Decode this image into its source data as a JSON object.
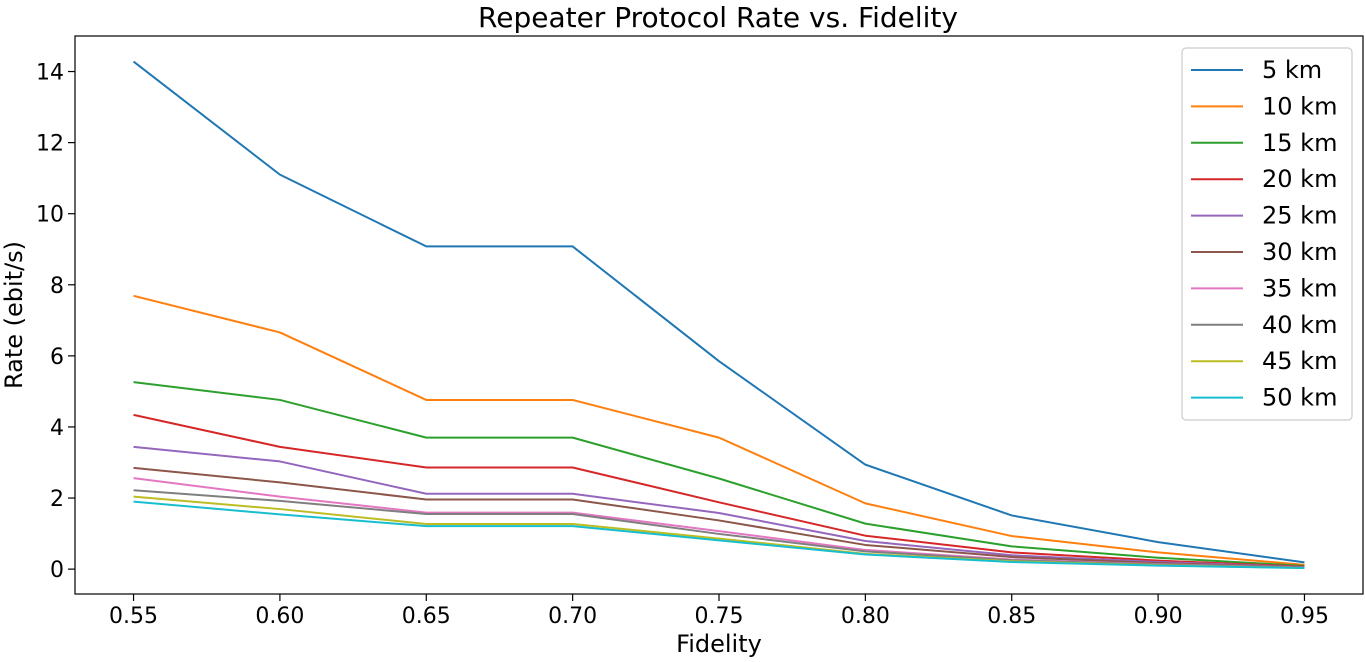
{
  "chart_data": {
    "type": "line",
    "title": "Repeater Protocol Rate vs. Fidelity",
    "xlabel": "Fidelity",
    "ylabel": "Rate (ebit/s)",
    "x": [
      0.55,
      0.6,
      0.65,
      0.7,
      0.75,
      0.8,
      0.85,
      0.9,
      0.95
    ],
    "x_ticks": [
      "0.55",
      "0.60",
      "0.65",
      "0.70",
      "0.75",
      "0.80",
      "0.85",
      "0.90",
      "0.95"
    ],
    "y_ticks": [
      "0",
      "2",
      "4",
      "6",
      "8",
      "10",
      "12",
      "14"
    ],
    "xlim": [
      0.53,
      0.97
    ],
    "ylim": [
      -0.7,
      15.0
    ],
    "grid": false,
    "legend_position": "top-right",
    "series": [
      {
        "name": "5 km",
        "color": "#1f77b4",
        "values": [
          14.28,
          11.1,
          9.08,
          9.08,
          5.85,
          2.94,
          1.51,
          0.76,
          0.19
        ]
      },
      {
        "name": "10 km",
        "color": "#ff7f0e",
        "values": [
          7.69,
          6.66,
          4.76,
          4.76,
          3.7,
          1.85,
          0.93,
          0.47,
          0.12
        ]
      },
      {
        "name": "15 km",
        "color": "#2ca02c",
        "values": [
          5.26,
          4.76,
          3.7,
          3.7,
          2.55,
          1.28,
          0.64,
          0.32,
          0.09
        ]
      },
      {
        "name": "20 km",
        "color": "#d62728",
        "values": [
          4.34,
          3.44,
          2.86,
          2.86,
          1.88,
          0.94,
          0.47,
          0.24,
          0.07
        ]
      },
      {
        "name": "25 km",
        "color": "#9467bd",
        "values": [
          3.44,
          3.03,
          2.12,
          2.12,
          1.58,
          0.79,
          0.39,
          0.2,
          0.06
        ]
      },
      {
        "name": "30 km",
        "color": "#8c564b",
        "values": [
          2.85,
          2.44,
          1.96,
          1.96,
          1.37,
          0.68,
          0.34,
          0.17,
          0.05
        ]
      },
      {
        "name": "35 km",
        "color": "#e377c2",
        "values": [
          2.56,
          2.04,
          1.59,
          1.59,
          1.07,
          0.54,
          0.27,
          0.14,
          0.04
        ]
      },
      {
        "name": "40 km",
        "color": "#7f7f7f",
        "values": [
          2.22,
          1.92,
          1.55,
          1.55,
          0.99,
          0.5,
          0.25,
          0.13,
          0.04
        ]
      },
      {
        "name": "45 km",
        "color": "#bcbd22",
        "values": [
          2.04,
          1.69,
          1.27,
          1.27,
          0.86,
          0.43,
          0.22,
          0.11,
          0.03
        ]
      },
      {
        "name": "50 km",
        "color": "#17becf",
        "values": [
          1.9,
          1.54,
          1.21,
          1.21,
          0.81,
          0.41,
          0.2,
          0.1,
          0.03
        ]
      }
    ]
  }
}
